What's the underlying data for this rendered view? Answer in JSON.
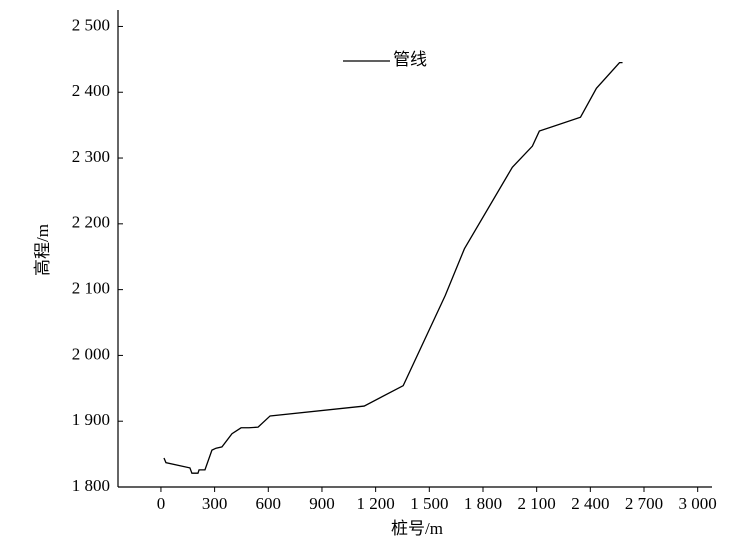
{
  "chart_data": {
    "type": "line",
    "x_label": "桩号/m",
    "y_label": "高程/m",
    "series": [
      {
        "name": "管线",
        "color": "#000000",
        "x": [
          17,
          28,
          162,
          173,
          207,
          213,
          246,
          285,
          308,
          341,
          397,
          448,
          492,
          543,
          610,
          1136,
          1354,
          1589,
          1696,
          1964,
          2076,
          2115,
          2345,
          2434,
          2563,
          2580
        ],
        "values": [
          1844,
          1837,
          1829,
          1821,
          1821,
          1826,
          1826,
          1856,
          1859,
          1861,
          1881,
          1890,
          1890,
          1891,
          1908,
          1923,
          1954,
          2091,
          2162,
          2286,
          2318,
          2341,
          2362,
          2406,
          2445,
          2445
        ]
      }
    ],
    "xlim": [
      -240,
      3080
    ],
    "xticks": [
      0,
      300,
      600,
      900,
      {
        "value": 1200,
        "label": "1 200"
      },
      {
        "value": 1500,
        "label": "1 500"
      },
      {
        "value": 1800,
        "label": "1 800"
      },
      {
        "value": 2100,
        "label": "2 100"
      },
      {
        "value": 2400,
        "label": "2 400"
      },
      {
        "value": 2700,
        "label": "2 700"
      },
      {
        "value": 3000,
        "label": "3 000"
      }
    ],
    "ylim": [
      1800,
      2525
    ],
    "yticks": [
      {
        "value": 1800,
        "label": "1 800"
      },
      {
        "value": 1900,
        "label": "1 900"
      },
      {
        "value": 2000,
        "label": "2 000"
      },
      {
        "value": 2100,
        "label": "2 100"
      },
      {
        "value": 2200,
        "label": "2 200"
      },
      {
        "value": 2300,
        "label": "2 300"
      },
      {
        "value": 2400,
        "label": "2 400"
      },
      {
        "value": 2500,
        "label": "2 500"
      }
    ]
  }
}
